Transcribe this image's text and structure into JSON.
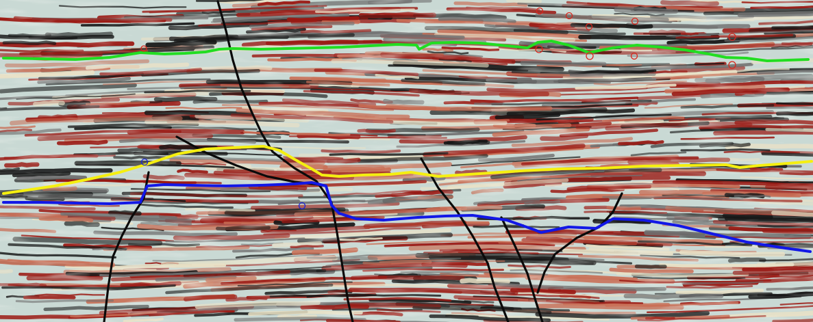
{
  "image": {
    "subject": "seismic-section",
    "palette": {
      "background": "#c9d9d4",
      "positive": "#9b1a14",
      "positive_soft": "#c96f56",
      "negative": "#161616",
      "negative_soft": "#6f6f6f",
      "pale": "#e9e1c6"
    }
  },
  "horizons": [
    {
      "id": "horizon-green",
      "color": "#22dd22",
      "markers": "red",
      "marker_color": "#d8261c"
    },
    {
      "id": "horizon-yellow",
      "color": "#f5ef10",
      "markers": "blue",
      "marker_color": "#1a24d6"
    },
    {
      "id": "horizon-blue",
      "color": "#1218e6",
      "markers": "blue",
      "marker_color": "#1a24d6"
    }
  ],
  "faults": {
    "count": 6,
    "color": "#0a0a0a"
  }
}
